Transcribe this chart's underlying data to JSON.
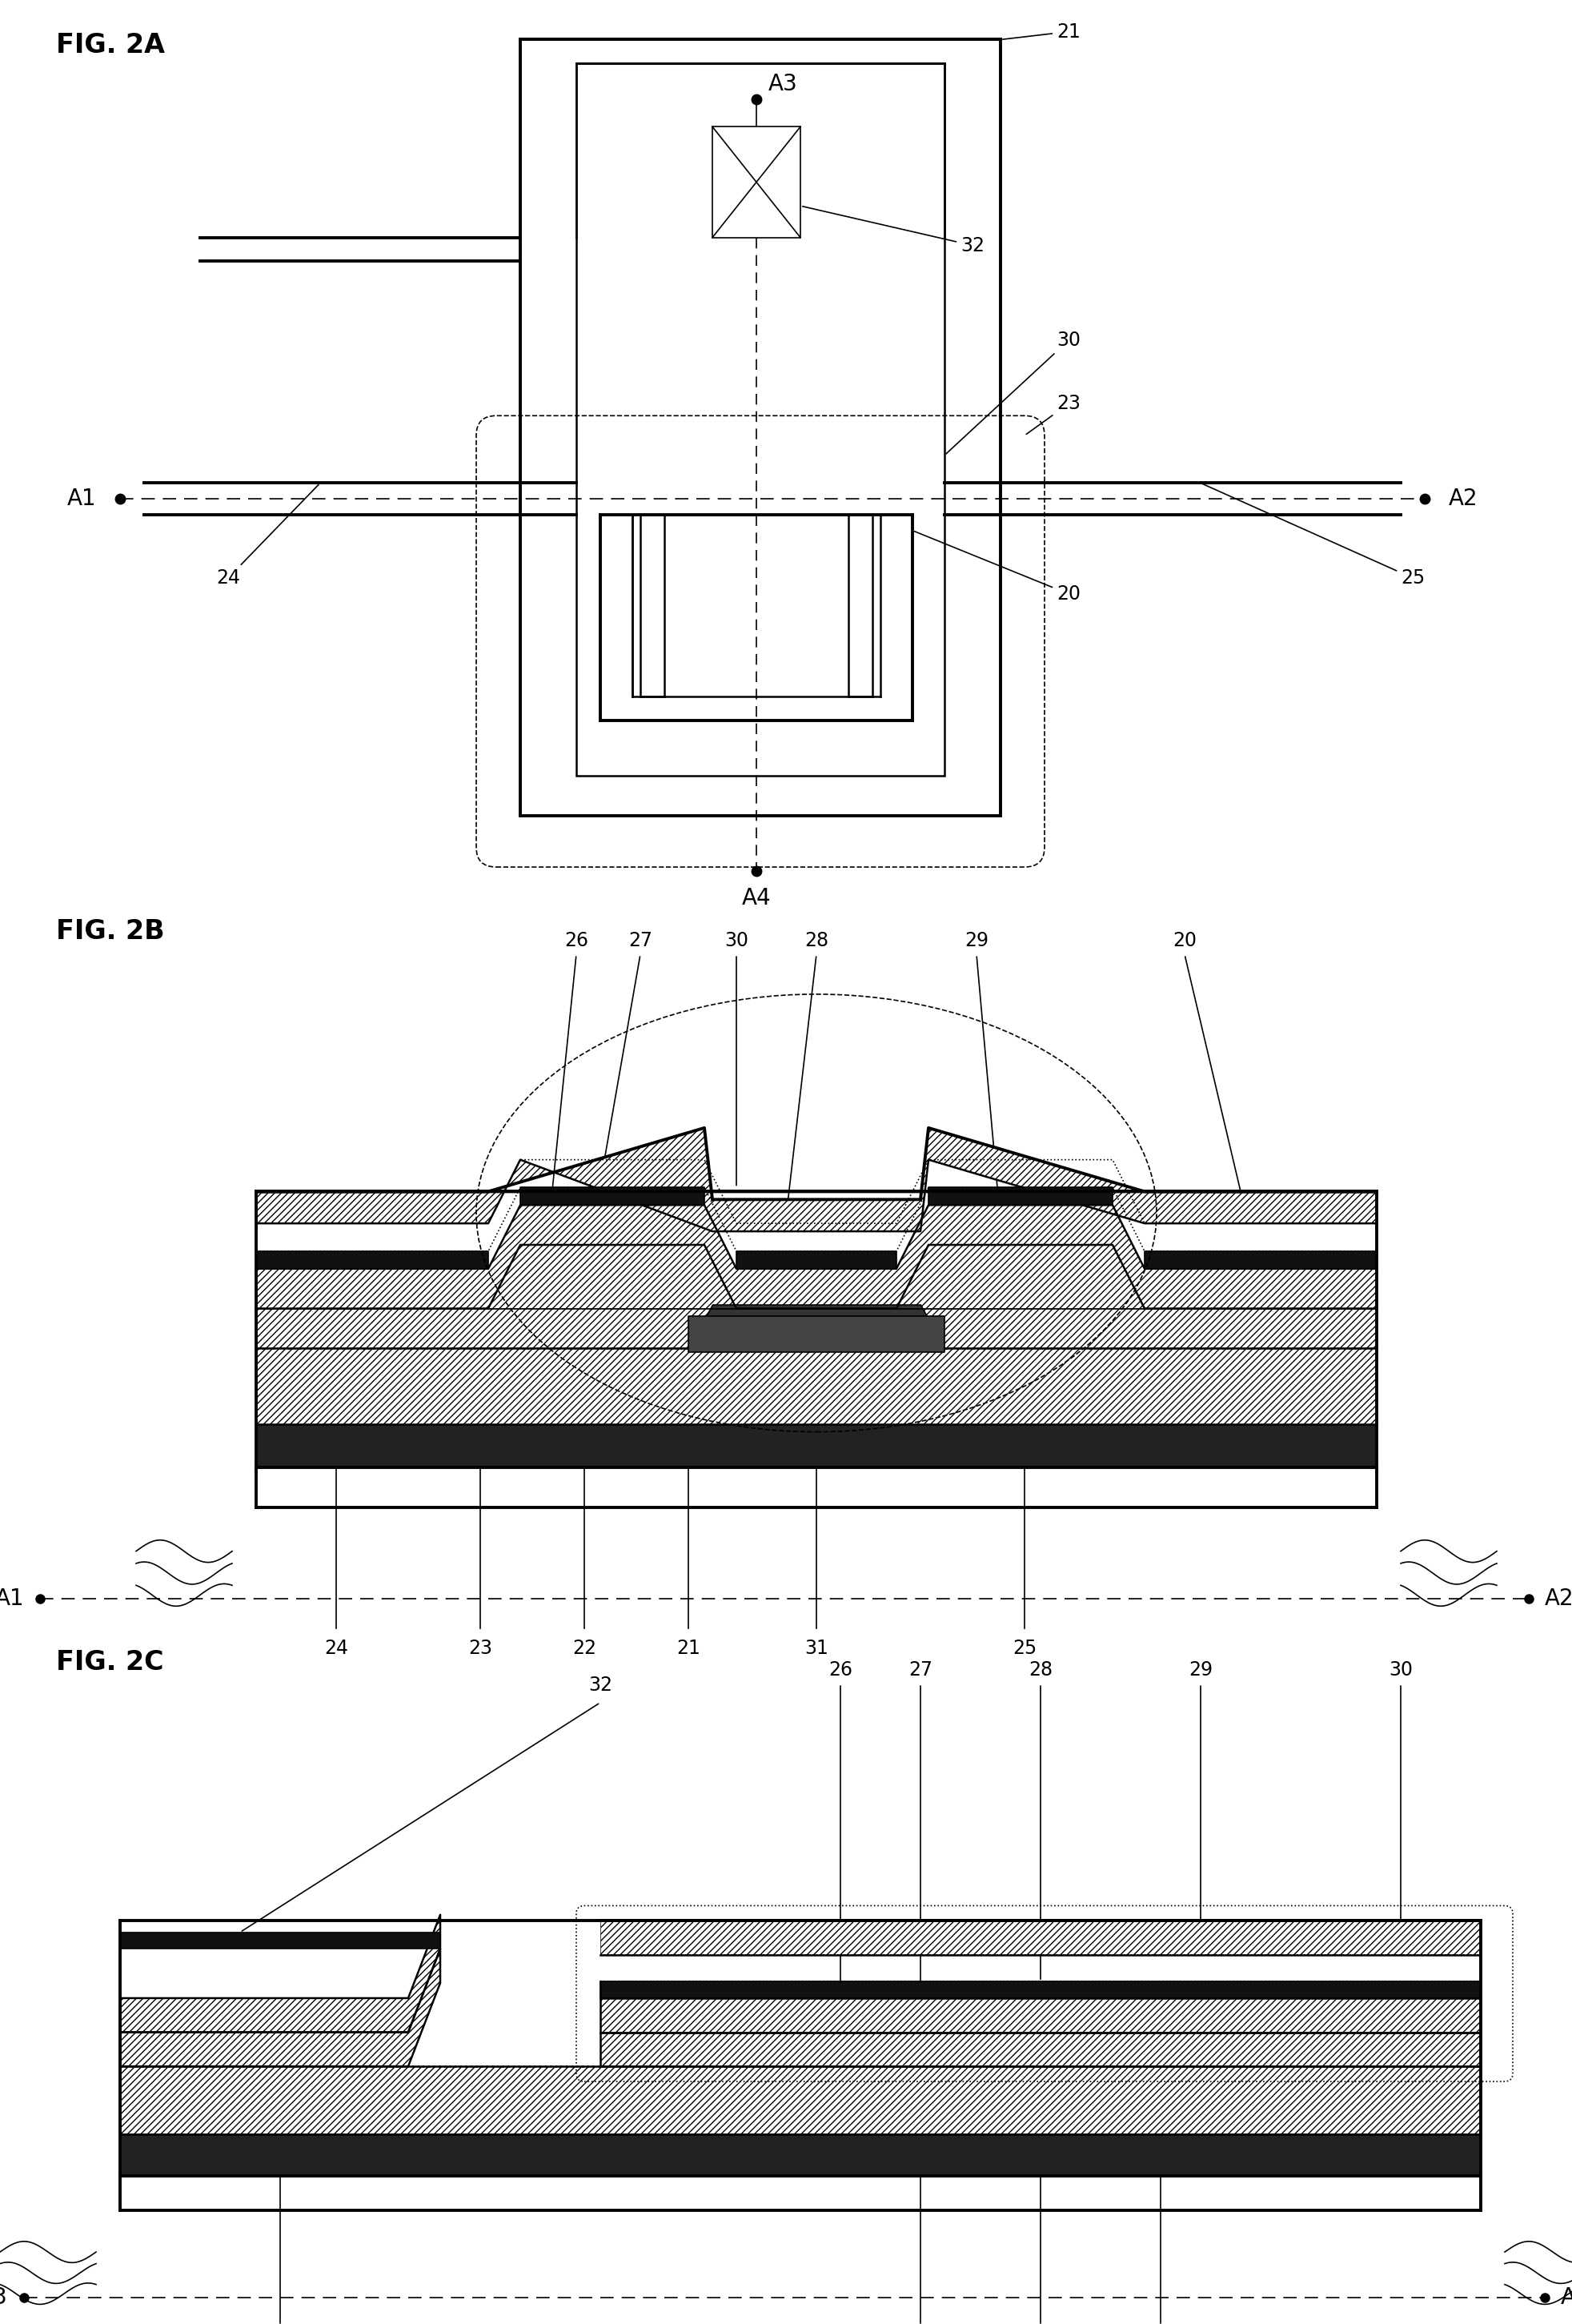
{
  "fig_title_2A": "FIG. 2A",
  "fig_title_2B": "FIG. 2B",
  "fig_title_2C": "FIG. 2C",
  "background_color": "#ffffff",
  "line_color": "#000000",
  "font_size_label": 20,
  "font_size_number": 17,
  "font_size_fig": 24,
  "lw_thick": 2.8,
  "lw_med": 1.8,
  "lw_thin": 1.2
}
